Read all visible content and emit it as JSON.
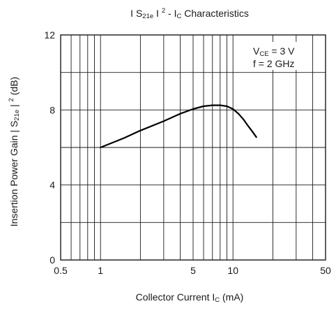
{
  "chart_data": {
    "type": "line",
    "title": {
      "lead": "I S",
      "sub": "21e",
      "mid": " I ",
      "sup": "2",
      "dash": " - I",
      "sub2": "C",
      "tail": " Characteristics"
    },
    "xlabel": {
      "lead": "Collector Current I",
      "sub": "C",
      "tail": " (mA)"
    },
    "ylabel": {
      "lead": "Insertion Power Gain | S",
      "sub": "21e",
      "mid": " | ",
      "sup": "2",
      "tail": " (dB)"
    },
    "x_scale": "log",
    "xlim": [
      0.5,
      50
    ],
    "ylim": [
      0,
      12
    ],
    "x_tick_labels": [
      {
        "v": 0.5,
        "t": "0.5"
      },
      {
        "v": 1,
        "t": "1"
      },
      {
        "v": 5,
        "t": "5"
      },
      {
        "v": 10,
        "t": "10"
      },
      {
        "v": 50,
        "t": "50"
      }
    ],
    "y_tick_labels": [
      {
        "v": 0,
        "t": "0"
      },
      {
        "v": 4,
        "t": "4"
      },
      {
        "v": 8,
        "t": "8"
      },
      {
        "v": 12,
        "t": "12"
      }
    ],
    "x_minor_gridlines": [
      0.6,
      0.7,
      0.8,
      0.9,
      2,
      3,
      4,
      6,
      7,
      8,
      9,
      20,
      30,
      40
    ],
    "y_minor_gridlines": [
      2,
      6,
      10
    ],
    "grid": true,
    "annotation": {
      "line1": {
        "lead": "V",
        "sub": "CE",
        "tail": " = 3 V"
      },
      "line2": "f = 2 GHz",
      "placement": "top-right"
    },
    "series": [
      {
        "color": "#000000",
        "x": [
          1,
          1.5,
          2,
          3,
          4,
          5,
          6,
          7,
          8,
          9,
          10,
          11,
          12,
          13,
          14,
          15
        ],
        "y": [
          6.0,
          6.5,
          6.9,
          7.4,
          7.8,
          8.05,
          8.2,
          8.25,
          8.25,
          8.2,
          8.05,
          7.8,
          7.5,
          7.15,
          6.85,
          6.55
        ]
      }
    ]
  }
}
